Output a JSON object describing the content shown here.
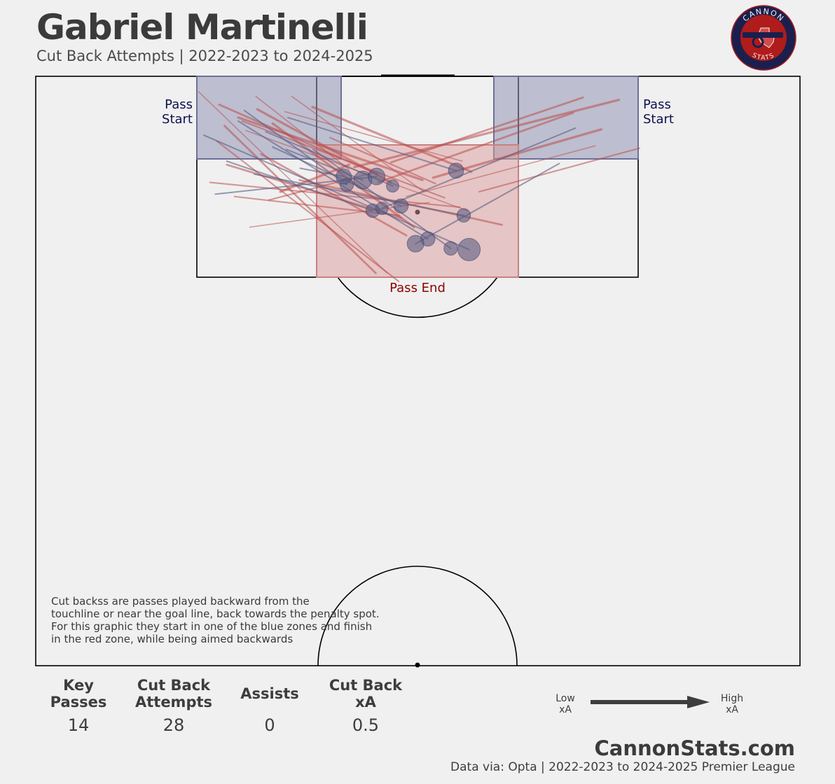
{
  "header": {
    "title": "Gabriel Martinelli",
    "subtitle": "Cut Back Attempts | 2022-2023 to 2024-2025"
  },
  "logo": {
    "top_text": "CANNON",
    "bottom_text": "STATS",
    "colors": {
      "ring": "#1b1f4d",
      "inner": "#b01b1b",
      "cannon": "#1b1f4d",
      "map": "#d24b4b"
    }
  },
  "zones": {
    "start_label": "Pass\nStart",
    "end_label": "Pass End",
    "start_color": "#8a8cae",
    "end_color": "#d99a9a"
  },
  "colors": {
    "key_pass": "#5a5d82",
    "attempt": "#b94d4d",
    "pitch_line": "#000000",
    "end_label": "#8b0000",
    "start_label": "#0e1150"
  },
  "description": [
    "Cut backss are passes played backward from the",
    "touchline or near the goal line, back towards the penalty spot.",
    "For this graphic they start in one of the blue zones and finish",
    "in the red zone, while being aimed backwards"
  ],
  "stats": [
    {
      "label": "Key\nPasses",
      "value": "14"
    },
    {
      "label": "Cut Back\nAttempts",
      "value": "28"
    },
    {
      "label": "Assists",
      "value": "0"
    },
    {
      "label": "Cut Back\nxA",
      "value": "0.5"
    }
  ],
  "legend": {
    "low": "Low\nxA",
    "high": "High\nxA"
  },
  "footer": {
    "brand": "CannonStats.com",
    "source": "Data via: Opta | 2022-2023 to 2024-2025 Premier League"
  },
  "chart_data": {
    "type": "scatter",
    "description_of_axes": "Opta pitch coordinates (attacking half), x = across pitch 0-100, y = distance from goal line 0-50",
    "xlim": [
      0,
      100
    ],
    "ylim": [
      0,
      50
    ],
    "attempts": [
      {
        "start": [
          21.3,
          1.3
        ],
        "end": [
          46.0,
          16.7
        ]
      },
      {
        "start": [
          23.7,
          5.5
        ],
        "end": [
          47.5,
          17.4
        ]
      },
      {
        "start": [
          24.7,
          4.2
        ],
        "end": [
          44.5,
          16.7
        ]
      },
      {
        "start": [
          26.5,
          3.5
        ],
        "end": [
          50.6,
          8.8
        ]
      },
      {
        "start": [
          28.8,
          1.7
        ],
        "end": [
          41.0,
          7.9
        ]
      },
      {
        "start": [
          22.8,
          9.0
        ],
        "end": [
          55.5,
          11.1
        ]
      },
      {
        "start": [
          25.0,
          7.5
        ],
        "end": [
          47.8,
          12.0
        ]
      },
      {
        "start": [
          31.0,
          4.0
        ],
        "end": [
          49.5,
          12.8
        ]
      },
      {
        "start": [
          33.5,
          1.7
        ],
        "end": [
          50.8,
          9.8
        ]
      },
      {
        "start": [
          26.0,
          10.2
        ],
        "end": [
          47.6,
          11.8
        ]
      },
      {
        "start": [
          29.5,
          6.6
        ],
        "end": [
          48.5,
          13.5
        ]
      },
      {
        "start": [
          32.0,
          9.8
        ],
        "end": [
          41.0,
          7.5
        ]
      },
      {
        "start": [
          27.5,
          4.6
        ],
        "end": [
          56.5,
          11.4
        ]
      },
      {
        "start": [
          30.5,
          10.5
        ],
        "end": [
          44.0,
          8.2
        ]
      },
      {
        "start": [
          34.5,
          8.8
        ],
        "end": [
          61.0,
          12.6
        ]
      },
      {
        "start": [
          36.2,
          2.6
        ],
        "end": [
          57.0,
          8.1
        ]
      },
      {
        "start": [
          28.0,
          12.8
        ],
        "end": [
          51.5,
          10.7
        ]
      },
      {
        "start": [
          38.5,
          5.2
        ],
        "end": [
          52.3,
          9.1
        ]
      },
      {
        "start": [
          24.0,
          2.4
        ],
        "end": [
          44.7,
          8.3
        ]
      },
      {
        "start": [
          29.0,
          2.8
        ],
        "end": [
          46.5,
          9.0
        ]
      },
      {
        "start": [
          32.6,
          3.0
        ],
        "end": [
          55.8,
          7.2
        ]
      },
      {
        "start": [
          27.0,
          3.8
        ],
        "end": [
          53.5,
          10.3
        ]
      },
      {
        "start": [
          71.6,
          1.8
        ],
        "end": [
          46.5,
          7.3
        ]
      },
      {
        "start": [
          76.3,
          2.0
        ],
        "end": [
          41.7,
          7.7
        ]
      },
      {
        "start": [
          73.2,
          5.9
        ],
        "end": [
          48.5,
          10.2
        ]
      },
      {
        "start": [
          79.0,
          6.1
        ],
        "end": [
          58.0,
          9.8
        ]
      },
      {
        "start": [
          70.3,
          3.1
        ],
        "end": [
          44.8,
          9.0
        ]
      },
      {
        "start": [
          74.0,
          4.5
        ],
        "end": [
          52.0,
          8.6
        ]
      }
    ],
    "key_passes": [
      {
        "start": [
          22.0,
          5.0
        ],
        "end": [
          56.7,
          14.7
        ],
        "xa": 0.09
      },
      {
        "start": [
          26.5,
          3.8
        ],
        "end": [
          51.3,
          13.8
        ],
        "xa": 0.025
      },
      {
        "start": [
          25.0,
          7.2
        ],
        "end": [
          44.1,
          11.4
        ],
        "xa": 0.02
      },
      {
        "start": [
          31.0,
          6.0
        ],
        "end": [
          47.8,
          11.0
        ],
        "xa": 0.025
      },
      {
        "start": [
          27.3,
          2.9
        ],
        "end": [
          40.7,
          9.2
        ],
        "xa": 0.02
      },
      {
        "start": [
          32.8,
          6.2
        ],
        "end": [
          42.8,
          8.8
        ],
        "xa": 0.05
      },
      {
        "start": [
          23.5,
          10.0
        ],
        "end": [
          44.6,
          8.5
        ],
        "xa": 0.04
      },
      {
        "start": [
          34.6,
          7.8
        ],
        "end": [
          40.3,
          8.5
        ],
        "xa": 0.03
      },
      {
        "start": [
          30.1,
          4.7
        ],
        "end": [
          46.7,
          9.3
        ],
        "xa": 0.015
      },
      {
        "start": [
          33.0,
          3.5
        ],
        "end": [
          55.0,
          8.0
        ],
        "xa": 0.03
      },
      {
        "start": [
          36.3,
          6.2
        ],
        "end": [
          54.3,
          14.6
        ],
        "xa": 0.02
      },
      {
        "start": [
          68.5,
          7.4
        ],
        "end": [
          49.7,
          14.2
        ],
        "xa": 0.04
      },
      {
        "start": [
          70.6,
          4.4
        ],
        "end": [
          45.3,
          11.2
        ],
        "xa": 0.015
      },
      {
        "start": [
          28.6,
          8.3
        ],
        "end": [
          56.0,
          11.8
        ],
        "xa": 0.02
      }
    ]
  }
}
